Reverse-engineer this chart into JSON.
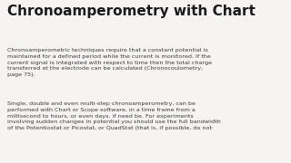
{
  "title": "Chronoamperometry with Chart",
  "background_color": "#f5f4f0",
  "title_color": "#1a1a1a",
  "text_color": "#3a3a3a",
  "title_fontsize": 11.0,
  "body_fontsize": 4.6,
  "paragraph1": "Chronoamperometric techniques require that a constant potential is\nmaintained for a defined period while the current is monitored. If the\ncurrent signal is integrated with respect to time then the total charge\ntransferred at the electrode can be calculated (Chronocoulometry,\npage 75).",
  "paragraph2": "Single, double and even multi-step chronoamperometry, can be\nperformed with Chart or Scope software, in a time frame from a\nmillisecond to hours, or even days, if need be. For experiments\ninvolving sudden changes in potential you should use the full bandwidth\nof the Potentiostat or Picostat, or QuadStat (that is, if possible, do not"
}
